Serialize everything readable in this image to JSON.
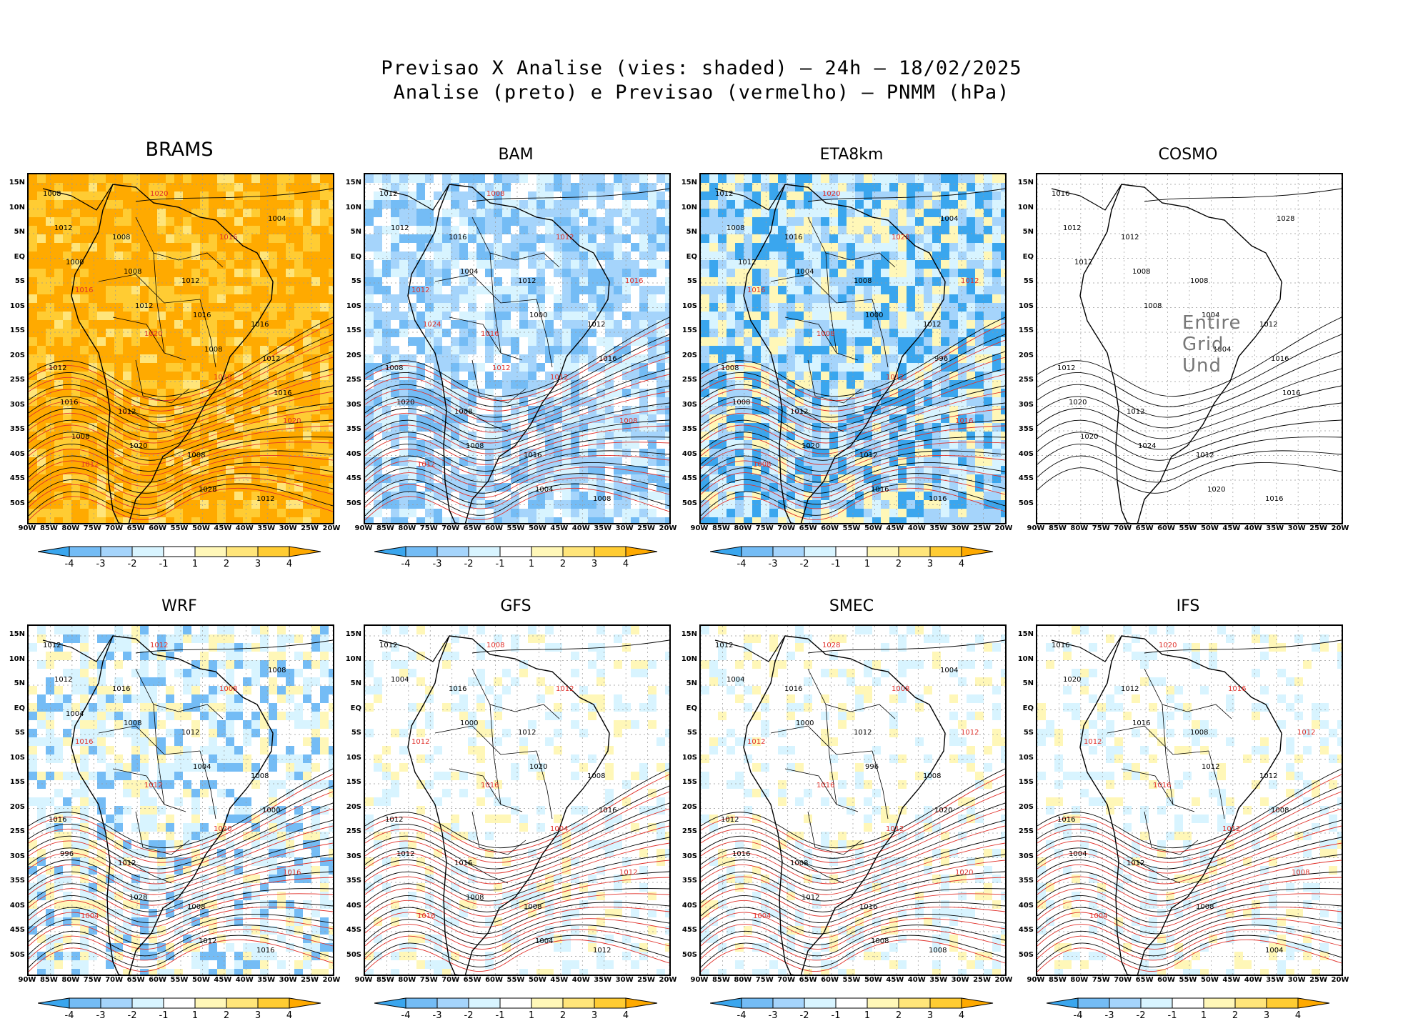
{
  "header": {
    "title_line1": "Previsao X Analise (vies: shaded) – 24h – 18/02/2025",
    "title_line2": "Analise (preto) e Previsao (vermelho) – PNMM (hPa)"
  },
  "axes": {
    "lat_labels": [
      "15N",
      "10N",
      "5N",
      "EQ",
      "5S",
      "10S",
      "15S",
      "20S",
      "25S",
      "30S",
      "35S",
      "40S",
      "45S",
      "50S"
    ],
    "lon_labels": [
      "90W",
      "85W",
      "80W",
      "75W",
      "70W",
      "65W",
      "60W",
      "55W",
      "50W",
      "45W",
      "40W",
      "35W",
      "30W",
      "25W",
      "20W"
    ]
  },
  "colorbar": {
    "labels": [
      "-4",
      "-3",
      "-2",
      "-1",
      "1",
      "2",
      "3",
      "4"
    ],
    "colors": [
      "#3aa6ee",
      "#74bcf5",
      "#a5d4fb",
      "#d8f4ff",
      "#ffffff",
      "#fff7b8",
      "#ffe57a",
      "#ffcc33",
      "#ffaa00"
    ]
  },
  "colors": {
    "analysis": "#000000",
    "forecast": "#e0302a",
    "grid": "#999999"
  },
  "panels": [
    {
      "id": "brams",
      "name": "BRAMS",
      "fill": "orange",
      "big": true,
      "labels_black": [
        "1008",
        "1008",
        "1012",
        "1016",
        "1012",
        "1012",
        "1008",
        "1012",
        "1012",
        "1008",
        "1016",
        "1012",
        "1016",
        "1020",
        "1028",
        "1004",
        "1000",
        "1012",
        "1008",
        "1016",
        "1008"
      ],
      "labels_red": [
        "1016",
        "1020",
        "1016",
        "1020",
        "1012",
        "1020",
        "1016"
      ]
    },
    {
      "id": "bam",
      "name": "BAM",
      "fill": "blue",
      "labels_black": [
        "1012",
        "1016",
        "1012",
        "1012",
        "1008",
        "1008",
        "1016",
        "1008",
        "1012",
        "1004",
        "1000",
        "1016",
        "1020",
        "1008",
        "1004"
      ],
      "labels_red": [
        "1012",
        "1016",
        "1012",
        "1008",
        "1012",
        "1008",
        "1012",
        "1016",
        "1024",
        "1012"
      ]
    },
    {
      "id": "eta8km",
      "name": "ETA8km",
      "fill": "blue-strong",
      "labels_black": [
        "1012",
        "1016",
        "1008",
        "1012",
        "1008",
        "1012",
        "1012",
        "1016",
        "1008",
        "1004",
        "1000",
        "996",
        "1008",
        "1020",
        "1016",
        "1004",
        "1012"
      ],
      "labels_red": [
        "1016",
        "1008",
        "1012",
        "1016",
        "1008",
        "1020",
        "1028",
        "1012"
      ]
    },
    {
      "id": "cosmo",
      "name": "COSMO",
      "fill": "none",
      "error_text": "Entire Grid Und",
      "labels_black": [
        "1016",
        "1012",
        "1008",
        "1012",
        "1012",
        "1012",
        "1012",
        "1016",
        "1012",
        "1008",
        "1004",
        "1016",
        "1020",
        "1024",
        "1020",
        "1028",
        "1012",
        "1008",
        "1004",
        "1016",
        "1020"
      ],
      "labels_red": []
    },
    {
      "id": "wrf",
      "name": "WRF",
      "fill": "mixed",
      "labels_black": [
        "1012",
        "1016",
        "1012",
        "1008",
        "1016",
        "1012",
        "1008",
        "1016",
        "1012",
        "1008",
        "1004",
        "1000",
        "996",
        "1028",
        "1012",
        "1008",
        "1004"
      ],
      "labels_red": [
        "1016",
        "1012",
        "1020",
        "1016",
        "1004",
        "1012",
        "1008"
      ]
    },
    {
      "id": "gfs",
      "name": "GFS",
      "fill": "light",
      "labels_black": [
        "1012",
        "1016",
        "1012",
        "1008",
        "1012",
        "1016",
        "1008",
        "1012",
        "1004",
        "1000",
        "1020",
        "1016",
        "1012",
        "1008",
        "1004"
      ],
      "labels_red": [
        "1012",
        "1016",
        "1004",
        "1012",
        "1016",
        "1008",
        "1012"
      ]
    },
    {
      "id": "smec",
      "name": "SMEC",
      "fill": "light",
      "labels_black": [
        "1012",
        "1016",
        "1012",
        "1008",
        "1012",
        "1008",
        "1016",
        "1008",
        "1004",
        "1000",
        "996",
        "1020",
        "1016",
        "1012",
        "1008",
        "1004"
      ],
      "labels_red": [
        "1012",
        "1016",
        "1012",
        "1020",
        "1004",
        "1028",
        "1008",
        "1012"
      ]
    },
    {
      "id": "ifs",
      "name": "IFS",
      "fill": "light",
      "labels_black": [
        "1016",
        "1012",
        "1008",
        "1012",
        "1016",
        "1012",
        "1008",
        "1004",
        "1020",
        "1016",
        "1012",
        "1008",
        "1004"
      ],
      "labels_red": [
        "1012",
        "1016",
        "1012",
        "1008",
        "1004",
        "1020",
        "1016",
        "1012"
      ]
    }
  ]
}
